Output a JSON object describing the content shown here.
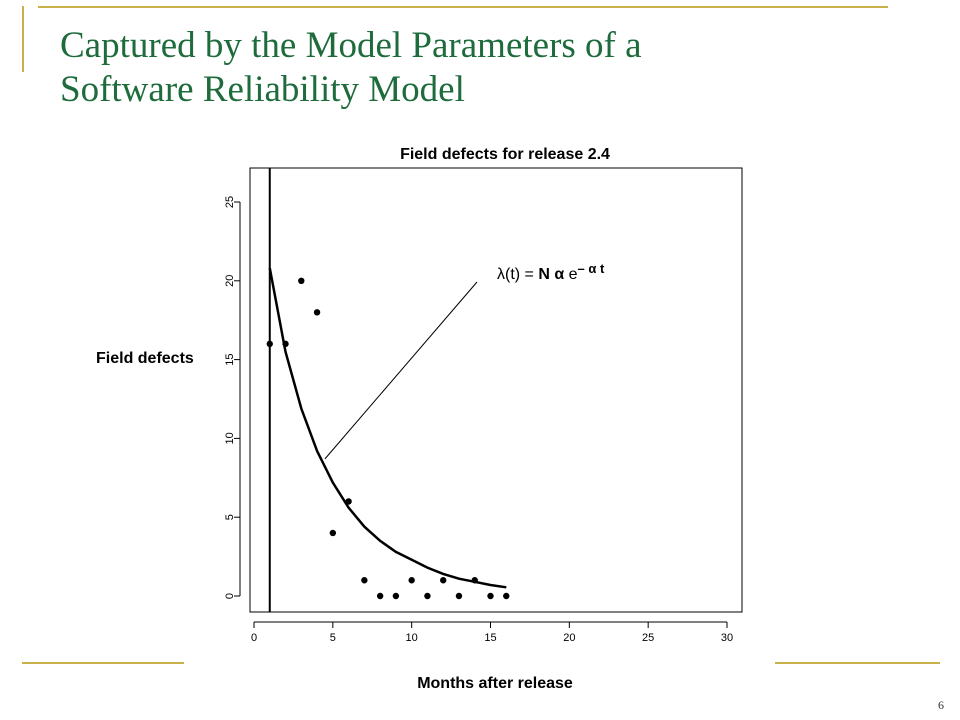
{
  "slide": {
    "title_line1": "Captured by the Model Parameters of a",
    "title_line2": "Software Reliability Model",
    "page_number": "6"
  },
  "colors": {
    "title": "#1e6b3c",
    "decoration": "#c8b04a",
    "ink": "#000000"
  },
  "chart_data": {
    "type": "scatter",
    "title": "Field defects for release 2.4",
    "xlabel": "Months after release",
    "ylabel": "Field defects",
    "xlim": [
      0,
      31
    ],
    "ylim": [
      -1,
      27
    ],
    "xticks": [
      0,
      5,
      10,
      15,
      20,
      25,
      30
    ],
    "yticks": [
      0,
      5,
      10,
      15,
      20,
      25
    ],
    "grid": false,
    "series": [
      {
        "kind": "points",
        "x": [
          1,
          2,
          3,
          4,
          5,
          6,
          7,
          8,
          9,
          10,
          11,
          12,
          13,
          14,
          15,
          16
        ],
        "y": [
          16,
          16,
          20,
          18,
          4,
          6,
          1,
          0,
          0,
          1,
          0,
          1,
          0,
          1,
          0,
          0
        ]
      },
      {
        "kind": "fitted-curve",
        "x": [
          1,
          2,
          3,
          4,
          5,
          6,
          7,
          8,
          9,
          10,
          11,
          12,
          13,
          14,
          15,
          16
        ],
        "y": [
          20.8,
          15.5,
          11.9,
          9.2,
          7.2,
          5.6,
          4.4,
          3.5,
          2.8,
          2.3,
          1.8,
          1.4,
          1.1,
          0.9,
          0.7,
          0.55
        ]
      }
    ],
    "vertical_line_x": 1,
    "annotation": {
      "lambda_t": "λ(t) =",
      "n_alpha": "N α",
      "e": "e",
      "exponent": "– α t",
      "points_to": {
        "x": 4.5,
        "y": 8.7
      }
    }
  }
}
